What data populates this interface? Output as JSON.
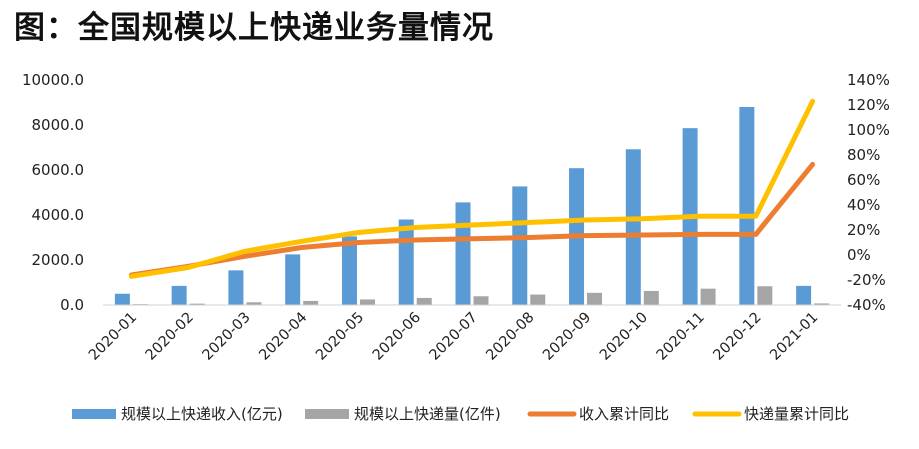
{
  "title": "图：全国规模以上快递业务量情况",
  "chart_data": {
    "type": "bar+line",
    "title": "图：全国规模以上快递业务量情况",
    "categories": [
      "2020-01",
      "2020-02",
      "2020-03",
      "2020-04",
      "2020-05",
      "2020-06",
      "2020-07",
      "2020-08",
      "2020-09",
      "2020-10",
      "2020-11",
      "2020-12",
      "2021-01"
    ],
    "y_left": {
      "ylim": [
        0,
        10000
      ],
      "ticks": [
        0,
        2000,
        4000,
        6000,
        8000,
        10000
      ],
      "tick_labels": [
        "0.0",
        "2000.0",
        "4000.0",
        "6000.0",
        "8000.0",
        "10000.0"
      ]
    },
    "y_right": {
      "ylim": [
        -40,
        140
      ],
      "ticks": [
        -40,
        -20,
        0,
        20,
        40,
        60,
        80,
        100,
        120,
        140
      ],
      "tick_labels": [
        "-40%",
        "-20%",
        "0%",
        "20%",
        "40%",
        "60%",
        "80%",
        "100%",
        "120%",
        "140%"
      ]
    },
    "series": [
      {
        "name": "规模以上快递收入(亿元)",
        "type": "bar",
        "axis": "left",
        "color": "#5B9BD5",
        "values": [
          500,
          850,
          1540,
          2250,
          3050,
          3800,
          4560,
          5270,
          6080,
          6920,
          7860,
          8800,
          850
        ]
      },
      {
        "name": "规模以上快递量(亿件)",
        "type": "bar",
        "axis": "left",
        "color": "#A5A5A5",
        "values": [
          38,
          60,
          121,
          180,
          247,
          314,
          388,
          464,
          542,
          625,
          725,
          833,
          70
        ]
      },
      {
        "name": "收入累计同比",
        "type": "line",
        "axis": "right",
        "color": "#ED7D31",
        "values": [
          -16,
          -9,
          -1,
          6,
          10,
          12,
          13,
          14,
          15.5,
          16,
          16.5,
          16.5,
          72.5
        ]
      },
      {
        "name": "快递量累计同比",
        "type": "line",
        "axis": "right",
        "color": "#FFC000",
        "values": [
          -17,
          -10,
          3,
          11,
          18,
          22,
          24,
          26,
          28,
          29,
          31,
          31,
          123
        ]
      }
    ],
    "legend_position": "bottom"
  }
}
